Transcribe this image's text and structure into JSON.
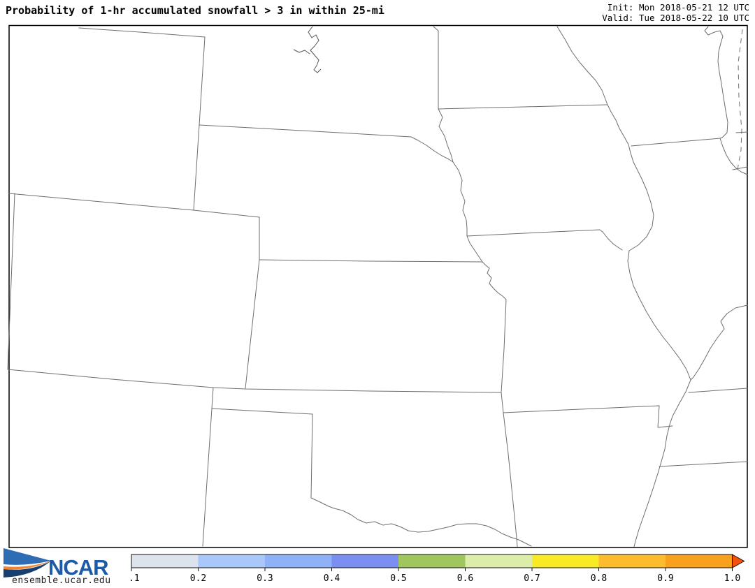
{
  "header": {
    "title": "Probability of 1-hr accumulated snowfall > 3 in within 25-mi",
    "init_line": "Init: Mon 2018-05-21 12 UTC",
    "valid_line": "Valid: Tue 2018-05-22 10 UTC"
  },
  "map": {
    "colors": {
      "state_border": "#6e6e6e",
      "frame": "#000000",
      "background": "#ffffff"
    }
  },
  "footer": {
    "logo_text": "NCAR",
    "site_url": "ensemble.ucar.edu",
    "logo_colors": {
      "blue": "#2e6cb4",
      "navy": "#173f70",
      "orange": "#ef8434",
      "text_blue": "#1e5ba6"
    }
  },
  "colorbar": {
    "labels": [
      "0.1",
      "0.2",
      "0.3",
      "0.4",
      "0.5",
      "0.6",
      "0.7",
      "0.8",
      "0.9",
      "1.0"
    ],
    "values": [
      0.1,
      0.2,
      0.3,
      0.4,
      0.5,
      0.6,
      0.7,
      0.8,
      0.9,
      1.0
    ],
    "segment_colors": [
      "#dce3ec",
      "#aac7f9",
      "#8fb1f8",
      "#7a8ff1",
      "#a0c75f",
      "#dcedaa",
      "#f8ea25",
      "#fdbb30",
      "#f9a01d"
    ],
    "arrow_color": "#f3520d",
    "outline_color": "#111111"
  }
}
